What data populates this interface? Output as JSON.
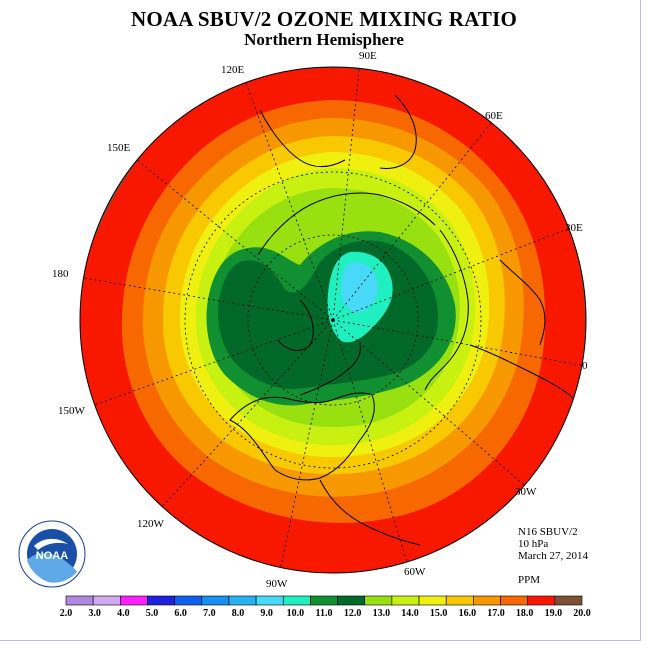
{
  "title": "NOAA SBUV/2 OZONE MIXING RATIO",
  "subtitle": "Northern Hemisphere",
  "longitude_labels": {
    "e90": "90E",
    "e120": "120E",
    "e60": "60E",
    "e150": "150E",
    "e30": "30E",
    "lon180": "180",
    "lon0": "0",
    "w150": "150W",
    "w30": "30W",
    "w120": "120W",
    "w60": "60W",
    "w90": "90W"
  },
  "info": {
    "instrument": "N16 SBUV/2",
    "level": "10 hPa",
    "date": "March 27, 2014",
    "units": "PPM"
  },
  "colorbar": {
    "labels": [
      "2.0",
      "3.0",
      "4.0",
      "5.0",
      "6.0",
      "7.0",
      "8.0",
      "9.0",
      "10.0",
      "11.0",
      "12.0",
      "13.0",
      "14.0",
      "15.0",
      "16.0",
      "17.0",
      "18.0",
      "19.0",
      "20.0"
    ],
    "colors": [
      "#b088e0",
      "#d2a8f0",
      "#ff20ff",
      "#2020e0",
      "#1060f0",
      "#1890f0",
      "#28b0f0",
      "#48d8f8",
      "#20f0c0",
      "#109030",
      "#006828",
      "#98e010",
      "#c8f010",
      "#f0f010",
      "#f8c800",
      "#f89800",
      "#f86800",
      "#f81800",
      "#7e5034"
    ]
  },
  "logo_text": "NOAA"
}
